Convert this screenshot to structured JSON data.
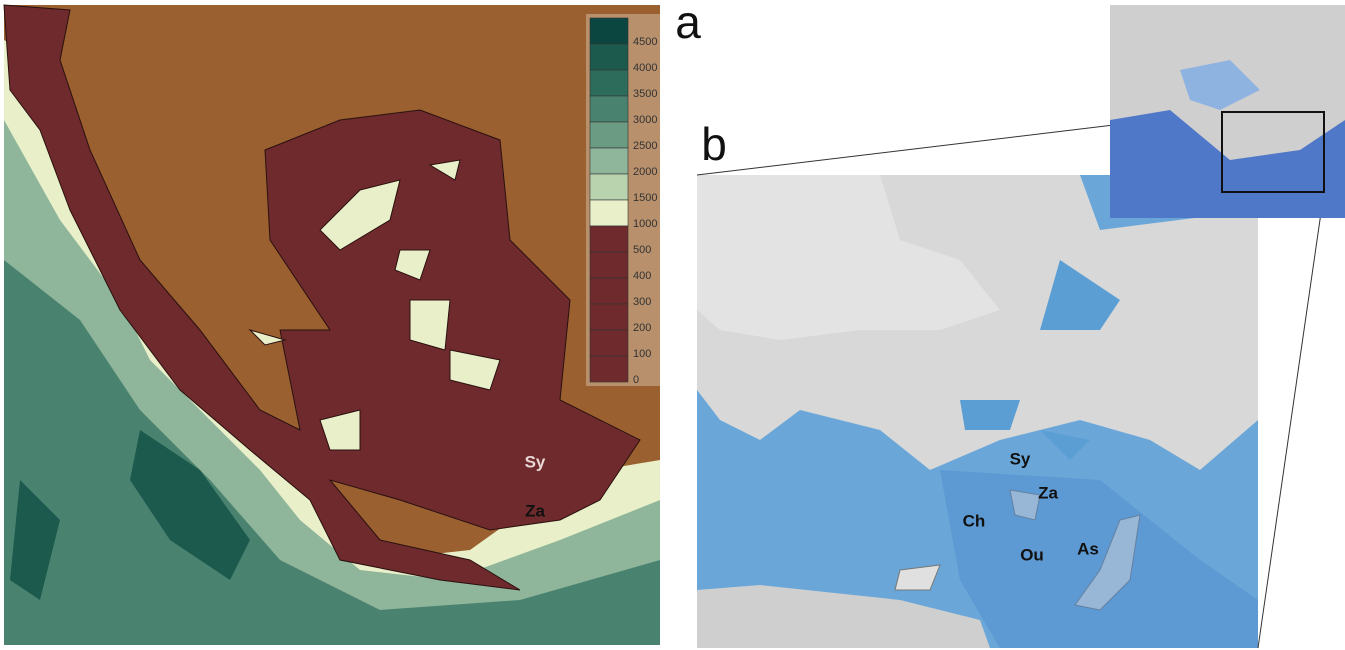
{
  "panel_left": {
    "legend": [
      {
        "label": "4500",
        "color": "#0b4640"
      },
      {
        "label": "4000",
        "color": "#1b5a4c"
      },
      {
        "label": "3500",
        "color": "#2d6c5a"
      },
      {
        "label": "3000",
        "color": "#4a8270"
      },
      {
        "label": "2500",
        "color": "#6b9b82"
      },
      {
        "label": "2000",
        "color": "#8fb69b"
      },
      {
        "label": "1500",
        "color": "#b8d3ae"
      },
      {
        "label": "1000",
        "color": "#e9f0c9"
      },
      {
        "label": "500",
        "color": "#6e2a2c"
      },
      {
        "label": "400",
        "color": "#6e2a2c"
      },
      {
        "label": "300",
        "color": "#6e2a2c"
      },
      {
        "label": "200",
        "color": "#6e2a2c"
      },
      {
        "label": "100",
        "color": "#6e2a2c"
      },
      {
        "label": "0",
        "color": "#6e2a2c"
      }
    ],
    "places": [
      "Sy",
      "Za"
    ]
  },
  "panel_a": {
    "letter": "a"
  },
  "panel_b": {
    "letter": "b",
    "places": [
      "Sy",
      "Za",
      "Ch",
      "Ou",
      "As"
    ]
  }
}
